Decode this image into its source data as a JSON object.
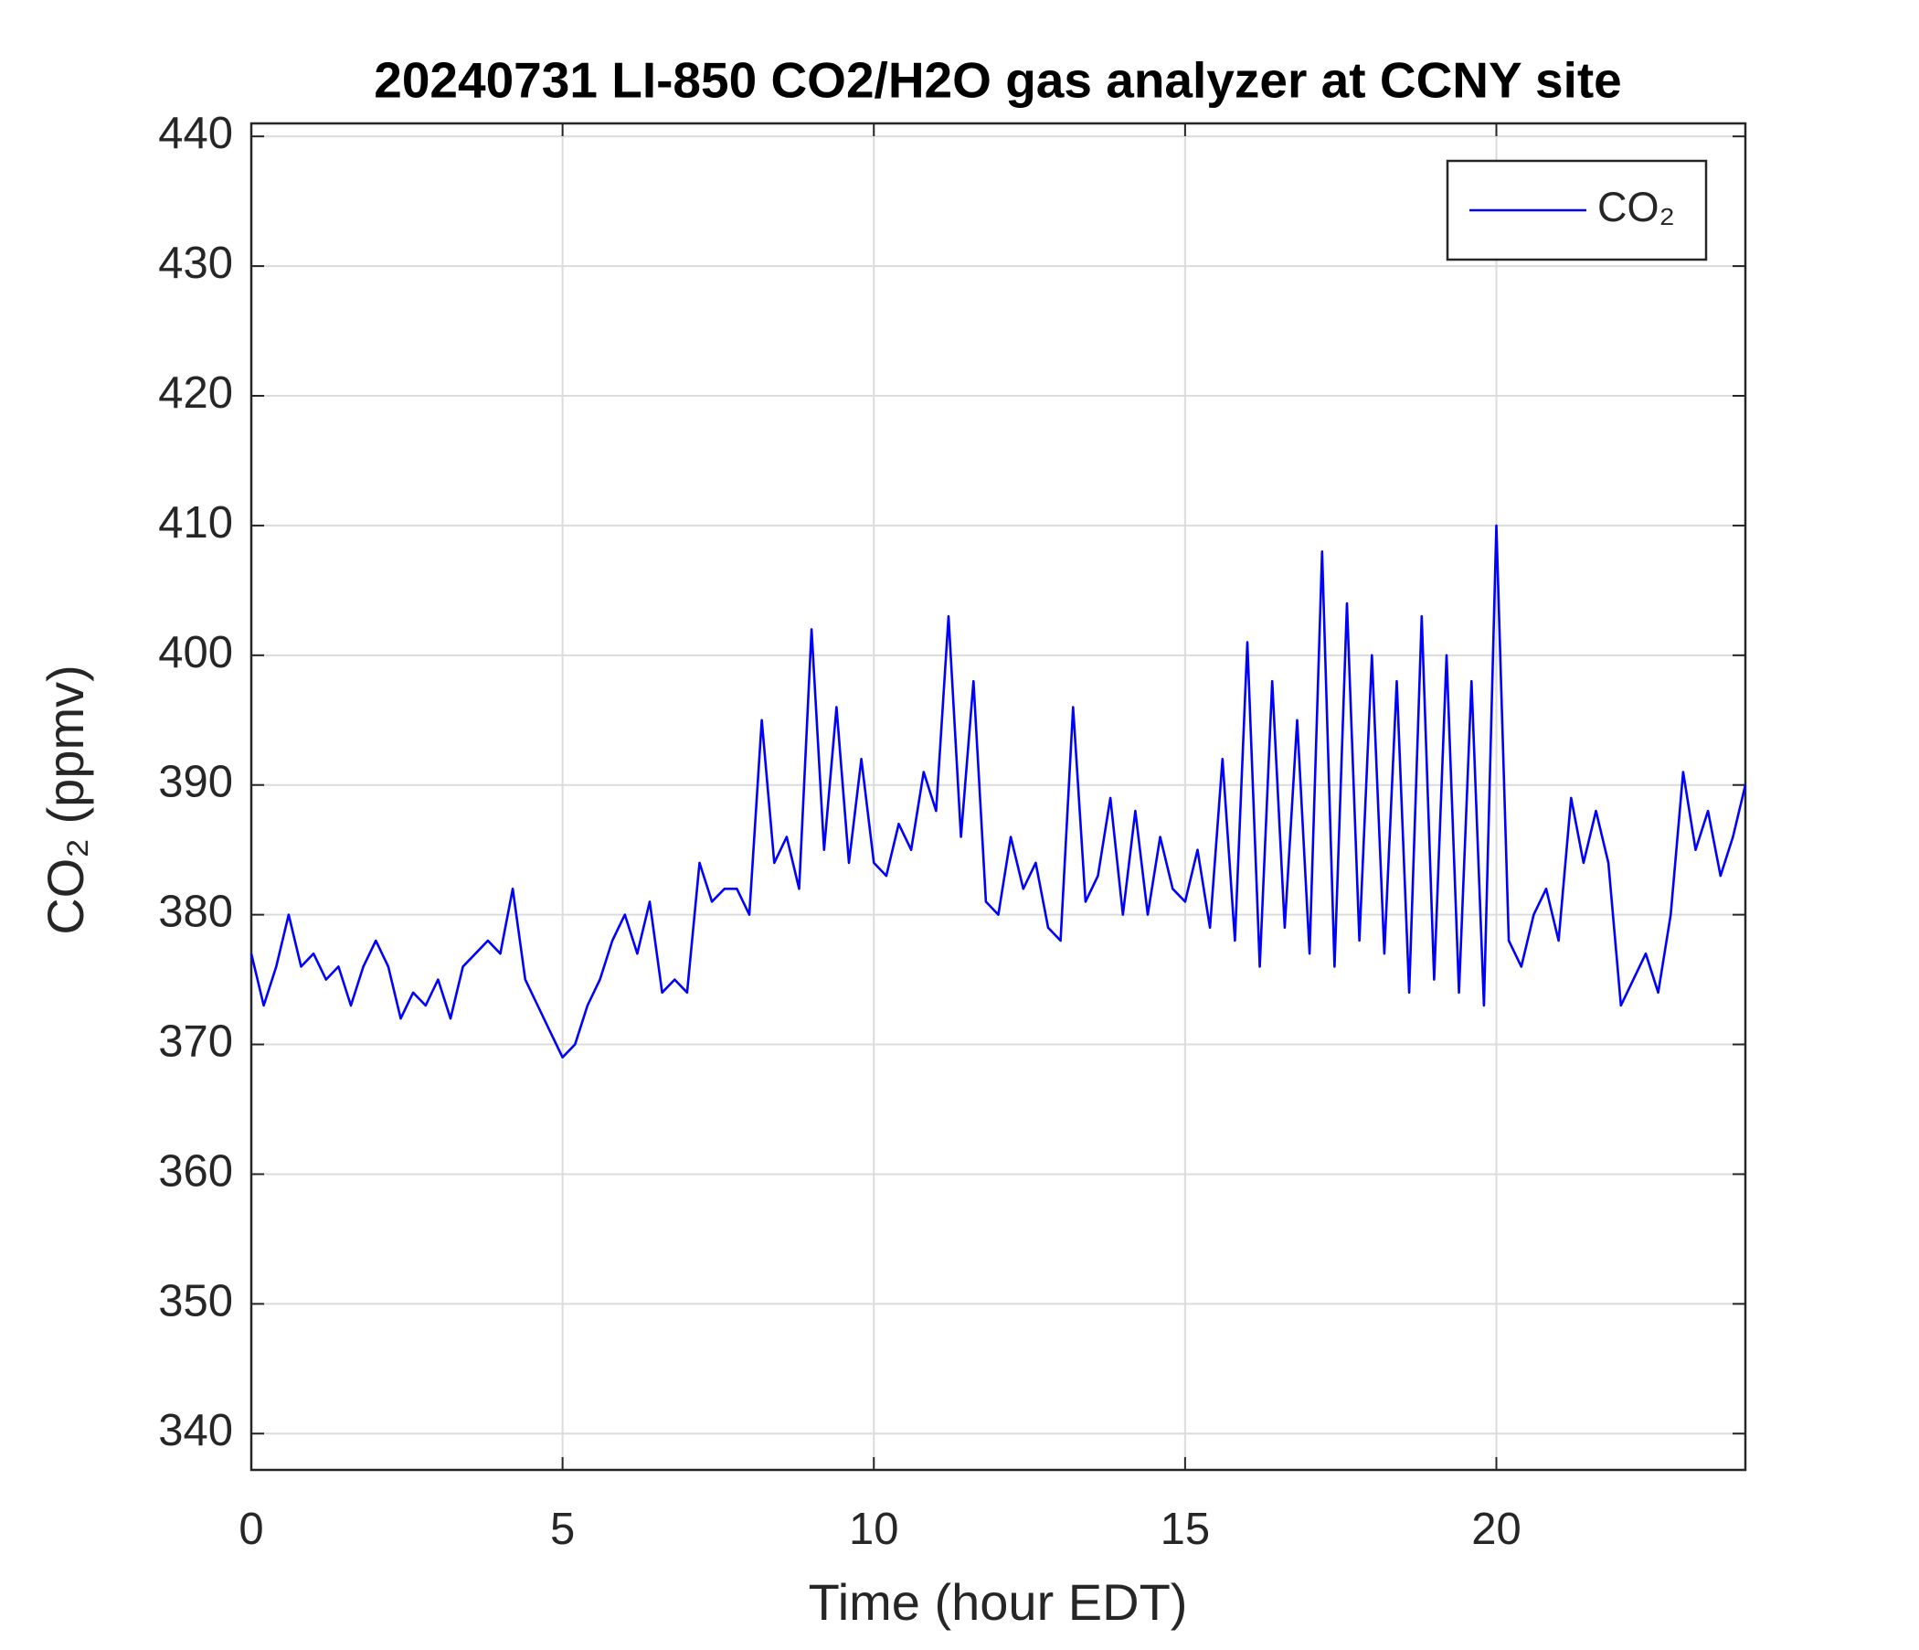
{
  "chart_data": {
    "type": "line",
    "title": "20240731 LI-850 CO2/H2O gas analyzer at CCNY site",
    "xlabel": "Time (hour EDT)",
    "ylabel": "CO₂ (ppmv)",
    "x": [
      0,
      0.2,
      0.4,
      0.6,
      0.8,
      1,
      1.2,
      1.4,
      1.6,
      1.8,
      2,
      2.2,
      2.4,
      2.6,
      2.8,
      3,
      3.2,
      3.4,
      3.6,
      3.8,
      4,
      4.2,
      4.4,
      4.6,
      4.8,
      5,
      5.2,
      5.4,
      5.6,
      5.8,
      6,
      6.2,
      6.4,
      6.6,
      6.8,
      7,
      7.2,
      7.4,
      7.6,
      7.8,
      8,
      8.2,
      8.4,
      8.6,
      8.8,
      9,
      9.2,
      9.4,
      9.6,
      9.8,
      10,
      10.2,
      10.4,
      10.6,
      10.8,
      11,
      11.2,
      11.4,
      11.6,
      11.8,
      12,
      12.2,
      12.4,
      12.6,
      12.8,
      13,
      13.2,
      13.4,
      13.6,
      13.8,
      14,
      14.2,
      14.4,
      14.6,
      14.8,
      15,
      15.2,
      15.4,
      15.6,
      15.8,
      16,
      16.2,
      16.4,
      16.6,
      16.8,
      17,
      17.2,
      17.4,
      17.6,
      17.8,
      18,
      18.2,
      18.4,
      18.6,
      18.8,
      19,
      19.2,
      19.4,
      19.6,
      19.8,
      20,
      20.2,
      20.4,
      20.6,
      20.8,
      21,
      21.2,
      21.4,
      21.6,
      21.8,
      22,
      22.2,
      22.4,
      22.6,
      22.8,
      23,
      23.2,
      23.4,
      23.6,
      23.8,
      24
    ],
    "series": [
      {
        "name": "CO₂",
        "color": "#0000ff",
        "values": [
          377,
          373,
          376,
          380,
          376,
          377,
          375,
          376,
          373,
          376,
          378,
          376,
          372,
          374,
          373,
          375,
          372,
          376,
          377,
          378,
          377,
          382,
          375,
          373,
          371,
          369,
          370,
          373,
          375,
          378,
          380,
          377,
          381,
          374,
          375,
          374,
          384,
          381,
          382,
          382,
          380,
          395,
          384,
          386,
          382,
          402,
          385,
          396,
          384,
          392,
          384,
          383,
          387,
          385,
          391,
          388,
          403,
          386,
          398,
          381,
          380,
          386,
          382,
          384,
          379,
          378,
          396,
          381,
          383,
          389,
          380,
          388,
          380,
          386,
          382,
          381,
          385,
          379,
          392,
          378,
          401,
          376,
          398,
          379,
          395,
          377,
          408,
          376,
          404,
          378,
          400,
          377,
          398,
          374,
          403,
          375,
          400,
          374,
          398,
          373,
          410,
          378,
          376,
          380,
          382,
          378,
          389,
          384,
          388,
          384,
          373,
          375,
          377,
          374,
          380,
          391,
          385,
          388,
          383,
          386,
          390
        ]
      }
    ],
    "xlim": [
      0,
      24
    ],
    "xticks": [
      0,
      5,
      10,
      15,
      20
    ],
    "ylim": [
      337.2,
      441
    ],
    "yticks": [
      340,
      350,
      360,
      370,
      380,
      390,
      400,
      410,
      420,
      430,
      440
    ],
    "grid": true,
    "legend": "upper right"
  }
}
